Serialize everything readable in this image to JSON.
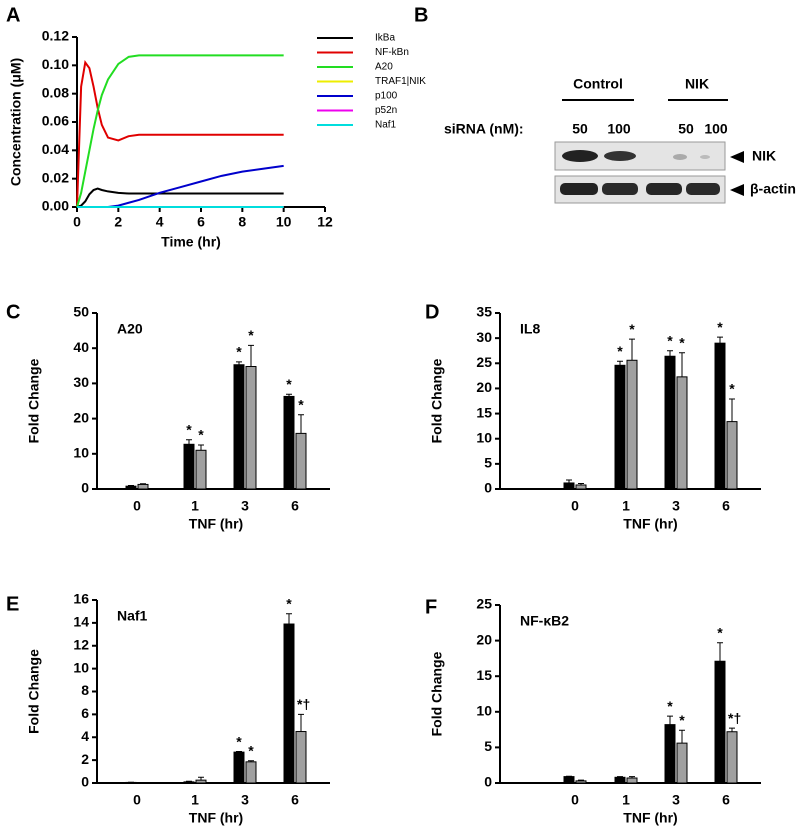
{
  "chart_data": [
    {
      "type": "line",
      "panel": "A",
      "x_label": "Time (hr)",
      "y_label": "Concentration (μM)",
      "x": [
        0,
        0.2,
        0.4,
        0.6,
        0.8,
        1,
        1.2,
        1.5,
        2,
        2.5,
        3,
        4,
        5,
        6,
        7,
        8,
        9,
        10
      ],
      "series": [
        {
          "name": "IkBa",
          "color": "#000000",
          "values": [
            0,
            0.001,
            0.004,
            0.009,
            0.012,
            0.013,
            0.012,
            0.011,
            0.01,
            0.0095,
            0.0095,
            0.0095,
            0.0095,
            0.0095,
            0.0095,
            0.0095,
            0.0095,
            0.0095
          ]
        },
        {
          "name": "NF-kBn",
          "color": "#e00000",
          "values": [
            0,
            0.085,
            0.102,
            0.098,
            0.085,
            0.07,
            0.058,
            0.049,
            0.047,
            0.05,
            0.051,
            0.051,
            0.051,
            0.051,
            0.051,
            0.051,
            0.051,
            0.051
          ]
        },
        {
          "name": "A20",
          "color": "#22dd22",
          "values": [
            0,
            0.01,
            0.025,
            0.04,
            0.055,
            0.068,
            0.079,
            0.09,
            0.101,
            0.106,
            0.107,
            0.107,
            0.107,
            0.107,
            0.107,
            0.107,
            0.107,
            0.107
          ]
        },
        {
          "name": "TRAF1|NIK",
          "color": "#eeee00",
          "values": [
            0,
            0,
            0,
            0,
            0,
            0,
            0,
            0,
            0,
            0,
            0,
            0,
            0,
            0,
            0,
            0,
            0,
            0
          ]
        },
        {
          "name": "p100",
          "color": "#0000cc",
          "values": [
            0,
            0,
            0,
            0,
            0,
            0,
            0,
            0,
            0.001,
            0.003,
            0.005,
            0.01,
            0.014,
            0.018,
            0.022,
            0.025,
            0.027,
            0.029
          ]
        },
        {
          "name": "p52n",
          "color": "#ee00ee",
          "values": [
            0,
            0,
            0,
            0,
            0,
            0,
            0,
            0,
            0,
            0,
            0,
            0,
            0,
            0,
            0,
            0,
            0,
            0
          ]
        },
        {
          "name": "Naf1",
          "color": "#00dddd",
          "values": [
            0,
            0,
            0,
            0,
            0,
            0,
            0,
            0,
            0,
            0,
            0,
            0,
            0,
            0,
            0,
            0,
            0,
            0
          ]
        }
      ],
      "xlim": [
        0,
        12
      ],
      "xticks": [
        0,
        2,
        4,
        6,
        8,
        10,
        12
      ],
      "ylim": [
        0,
        0.12
      ],
      "yticks": [
        {
          "value": 0,
          "label": "0.00"
        },
        0.02,
        0.04,
        0.06,
        {
          "value": 0.08,
          "label": "0.08"
        },
        {
          "value": 0.1,
          "label": "0.10"
        },
        0.12
      ],
      "legend": "upper right"
    },
    {
      "type": "bar",
      "panel": "C",
      "title": "A20",
      "x_label": "TNF (hr)",
      "y_label": "Fold Change",
      "categories": [
        "0",
        "1",
        "3",
        "6"
      ],
      "series": [
        {
          "color": "#000000",
          "values": [
            0.8,
            12.7,
            35.3,
            26.3
          ],
          "errors": [
            0.2,
            1.3,
            0.8,
            0.6
          ],
          "markers": [
            null,
            "*",
            "*",
            "*"
          ]
        },
        {
          "color": "#a0a0a0",
          "values": [
            1.3,
            11,
            34.8,
            15.8
          ],
          "errors": [
            0.2,
            1.5,
            6,
            5.3
          ],
          "markers": [
            null,
            "*",
            "*",
            "*"
          ]
        }
      ],
      "ylim": [
        0,
        50
      ],
      "yticks": [
        0,
        10,
        20,
        30,
        40,
        50
      ]
    },
    {
      "type": "bar",
      "panel": "D",
      "title": "IL8",
      "x_label": "TNF (hr)",
      "y_label": "Fold Change",
      "categories": [
        "0",
        "1",
        "3",
        "6"
      ],
      "series": [
        {
          "color": "#000000",
          "values": [
            1.2,
            24.6,
            26.4,
            29
          ],
          "errors": [
            0.6,
            0.8,
            1.1,
            1.2
          ],
          "markers": [
            null,
            "*",
            "*",
            "*"
          ]
        },
        {
          "color": "#a0a0a0",
          "values": [
            0.8,
            25.6,
            22.3,
            13.4
          ],
          "errors": [
            0.3,
            4.2,
            4.8,
            4.5
          ],
          "markers": [
            null,
            "*",
            "*",
            "*"
          ]
        }
      ],
      "ylim": [
        0,
        35
      ],
      "yticks": [
        0,
        5,
        10,
        15,
        20,
        25,
        30,
        35
      ]
    },
    {
      "type": "bar",
      "panel": "E",
      "title": "Naf1",
      "x_label": "TNF (hr)",
      "y_label": "Fold Change",
      "categories": [
        "0",
        "1",
        "3",
        "6"
      ],
      "series": [
        {
          "color": "#000000",
          "values": [
            0.05,
            0.1,
            2.7,
            13.9
          ],
          "errors": [
            0.02,
            0.05,
            0.05,
            0.9
          ],
          "markers": [
            null,
            null,
            "*",
            "*"
          ]
        },
        {
          "color": "#a0a0a0",
          "values": [
            0.02,
            0.25,
            1.85,
            4.5
          ],
          "errors": [
            0.02,
            0.25,
            0.1,
            1.5
          ],
          "markers": [
            null,
            null,
            "*",
            "*†"
          ]
        }
      ],
      "ylim": [
        0,
        16
      ],
      "yticks": [
        0,
        2,
        4,
        6,
        8,
        10,
        12,
        14,
        16
      ]
    },
    {
      "type": "bar",
      "panel": "F",
      "title": "NF-κB2",
      "x_label": "TNF (hr)",
      "y_label": "Fold Change",
      "categories": [
        "0",
        "1",
        "3",
        "6"
      ],
      "series": [
        {
          "color": "#000000",
          "values": [
            0.9,
            0.8,
            8.2,
            17.1
          ],
          "errors": [
            0.05,
            0.1,
            1.2,
            2.6
          ],
          "markers": [
            null,
            null,
            "*",
            "*"
          ]
        },
        {
          "color": "#a0a0a0",
          "values": [
            0.3,
            0.7,
            5.6,
            7.2
          ],
          "errors": [
            0.1,
            0.2,
            1.8,
            0.5
          ],
          "markers": [
            null,
            null,
            "*",
            "*†"
          ]
        }
      ],
      "ylim": [
        0,
        25
      ],
      "yticks": [
        0,
        5,
        10,
        15,
        20,
        25
      ]
    }
  ],
  "blot": {
    "panel": "B",
    "groups": [
      "Control",
      "NIK"
    ],
    "dose_label": "siRNA (nM):",
    "doses": [
      "50",
      "100",
      "50",
      "100"
    ],
    "bands": [
      "NIK",
      "β-actin"
    ]
  }
}
